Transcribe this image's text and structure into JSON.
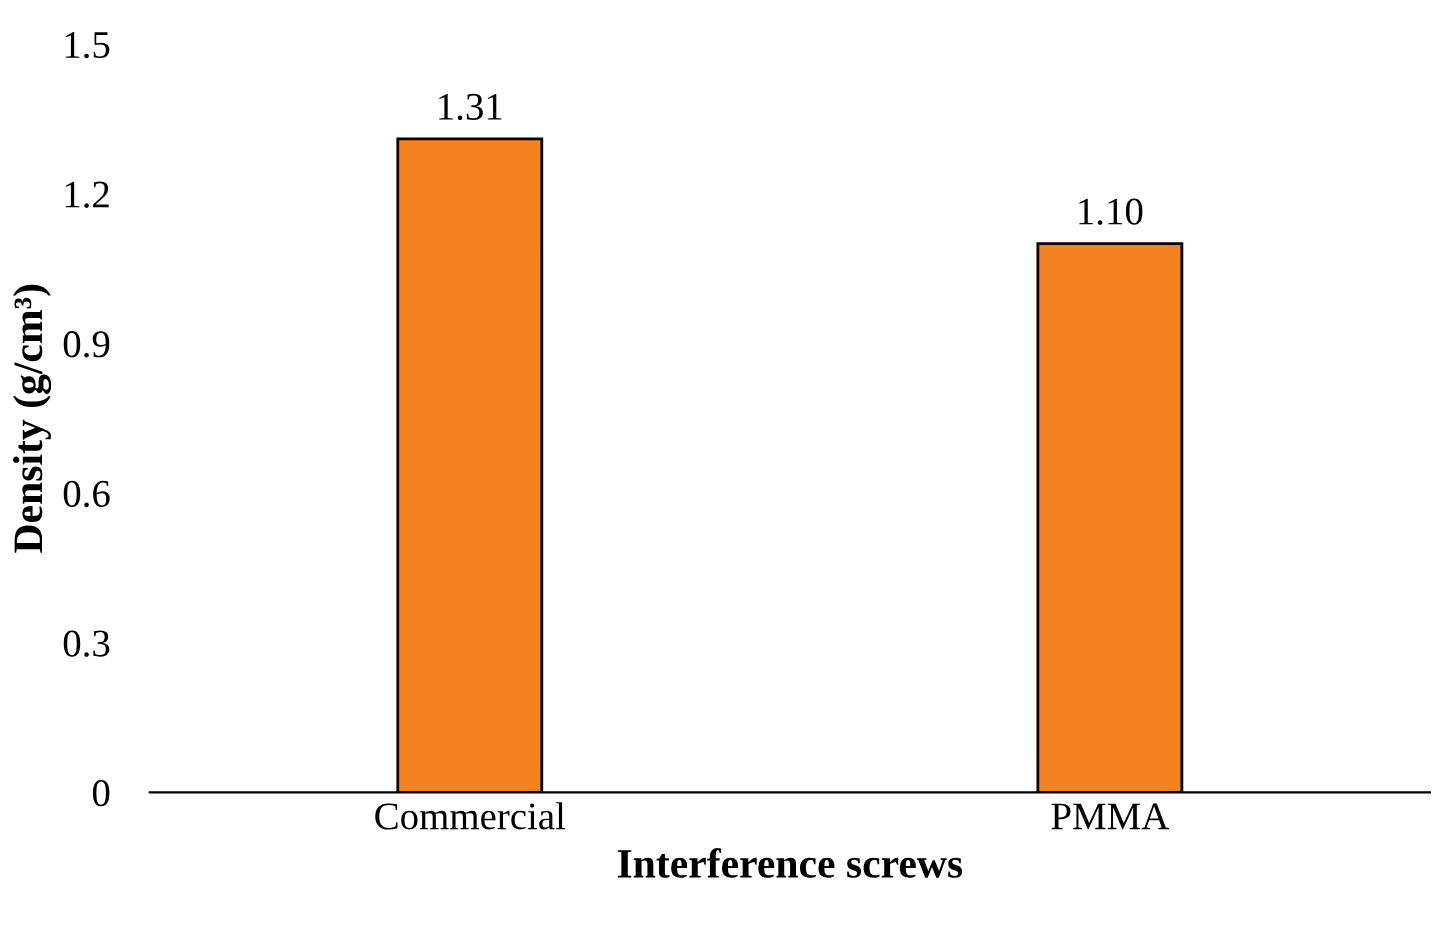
{
  "chart_data": {
    "type": "bar",
    "xlabel": "Interference screws",
    "ylabel": "Density (g/cm³)",
    "categories": [
      "Commercial",
      "PMMA"
    ],
    "values": [
      1.31,
      1.1
    ],
    "value_labels": [
      "1.31",
      "1.10"
    ],
    "color": "#f58220",
    "ylim": [
      0,
      1.5
    ],
    "yticks": [
      0,
      0.3,
      0.6,
      0.9,
      1.2,
      1.5
    ],
    "grid": false,
    "legend": false
  }
}
